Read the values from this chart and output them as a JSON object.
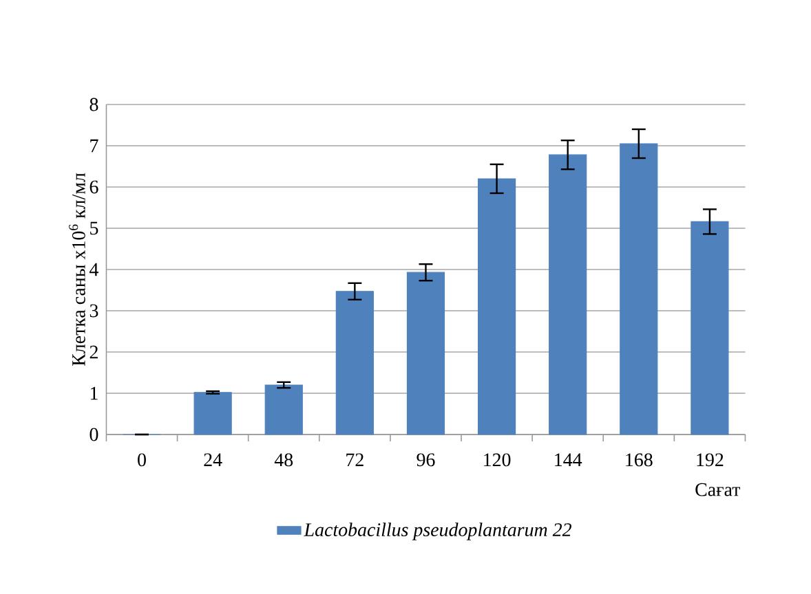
{
  "chart_data": {
    "type": "bar",
    "xlabel": "Сағат",
    "ylabel": "Клетка саны x10$^{6}$ кл/мл",
    "categories": [
      "0",
      "24",
      "48",
      "72",
      "96",
      "120",
      "144",
      "168",
      "192"
    ],
    "series": [
      {
        "name": "Lactobacillus pseudoplantarum 22",
        "color": "#4f81bd",
        "values": [
          0,
          1.02,
          1.2,
          3.47,
          3.93,
          6.2,
          6.78,
          7.05,
          5.16
        ],
        "errors": [
          0,
          0.03,
          0.07,
          0.2,
          0.2,
          0.35,
          0.35,
          0.35,
          0.3
        ]
      }
    ],
    "ylim": [
      0,
      8
    ],
    "yticks": [
      0,
      1,
      2,
      3,
      4,
      5,
      6,
      7,
      8
    ],
    "grid": "y",
    "legend": "bottom"
  }
}
